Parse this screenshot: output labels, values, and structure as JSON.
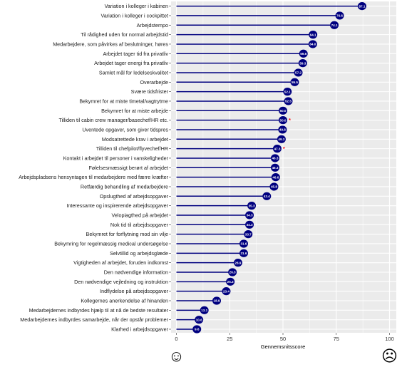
{
  "chart_data": {
    "type": "lollipop",
    "orientation": "horizontal",
    "xlabel": "Gennemsnitsscore",
    "xlim": [
      0,
      100
    ],
    "xticks": [
      0,
      25,
      50,
      75,
      100
    ],
    "grid": true,
    "categories": [
      "Variation i kolleger i kabinen",
      "Variation i kolleger i cockpittet",
      "Arbejdstempo",
      "Til rådighed uden for normal arbejdstid",
      "Medarbejdere, som påvirkes af beslutninger, høres",
      "Arbejdet tager tid fra privatliv",
      "Arbejdet tager energi fra privatliv",
      "Samlet mål for ledelseskvalitet",
      "Overarbejde",
      "Svære tidsfrister",
      "Bekymret for at miste timetal/vagtrytme",
      "Bekymret for at miste arbejde",
      "Tilliden til cabin crew manager/basechef/HR etc.",
      "Uventede opgaver, som giver tidspres",
      "Modsatrettede krav i arbejdet",
      "Tilliden til chefpilot/flyvechef/HR",
      "Kontakt i arbejdet til personer i vanskeligheder",
      "Følelsesmæssigt berørt af arbejdet",
      "Arbejdspladsens hensyntagen til medarbejdere med færre kræfter",
      "Retfærdig behandling af medarbejdere",
      "Opslugthed af arbejdsopgaver",
      "Interessante og inspirerende arbejdsopgaver",
      "Velopiagthed på arbejdet",
      "Nok tid til arbejdsopgaver",
      "Bekymret for forflytning mod sin vilje",
      "Bekymring for regelmæssig medical undersøgelse",
      "Selvtillid og arbejdsglæde",
      "Vigtigheden af arbejdet, foruden indkomst",
      "Den nødvendige information",
      "Den nødvendige vejledning og instruktion",
      "Indflydelse på arbejdsopgaver",
      "Kollegernes anerkendelse af hinanden",
      "Medarbejdernes indbyrdes hjælp til at nå de bedste resultater",
      "Medarbejdernes indbyrdes samarbejde, når der opstår problemer",
      "Klarhed i arbejdsopgaver"
    ],
    "values": [
      87.1,
      76.6,
      74.1,
      64.1,
      64.0,
      59.6,
      59.3,
      57.2,
      55.5,
      52.1,
      52.5,
      50.0,
      50.0,
      49.8,
      49.3,
      47.3,
      46.3,
      46.3,
      46.6,
      45.8,
      42.4,
      35.3,
      34.3,
      34.3,
      33.7,
      31.6,
      31.6,
      28.9,
      26.3,
      25.3,
      23.4,
      18.9,
      13.1,
      10.6,
      9.6
    ],
    "value_labels": [
      "87.1",
      "76.6",
      "74.1",
      "64.1",
      "64.0",
      "59.6",
      "59.3",
      "57.2",
      "55.5",
      "52.1",
      "52.5",
      "50.0",
      "50.0",
      "49.8",
      "49.3",
      "47.3",
      "46.3",
      "46.3",
      "46.6",
      "45.8",
      "42.4",
      "35.3",
      "34.3",
      "34.3",
      "33.7",
      "31.6",
      "31.6",
      "28.9",
      "26.3",
      "25.3",
      "23.4",
      "18.9",
      "13.1",
      "10.6",
      "9.6"
    ],
    "markers": [
      {
        "category_index": 12,
        "symbol": "*"
      },
      {
        "category_index": 15,
        "symbol": "*"
      }
    ],
    "colors": {
      "stem": "#00007f",
      "dot": "#00007f",
      "panel": "#ebebeb",
      "grid_major": "#ffffff",
      "marker": "#ff0000"
    },
    "axis_end_icons": {
      "left": "smiling-face-icon",
      "right": "frowning-face-icon"
    }
  }
}
